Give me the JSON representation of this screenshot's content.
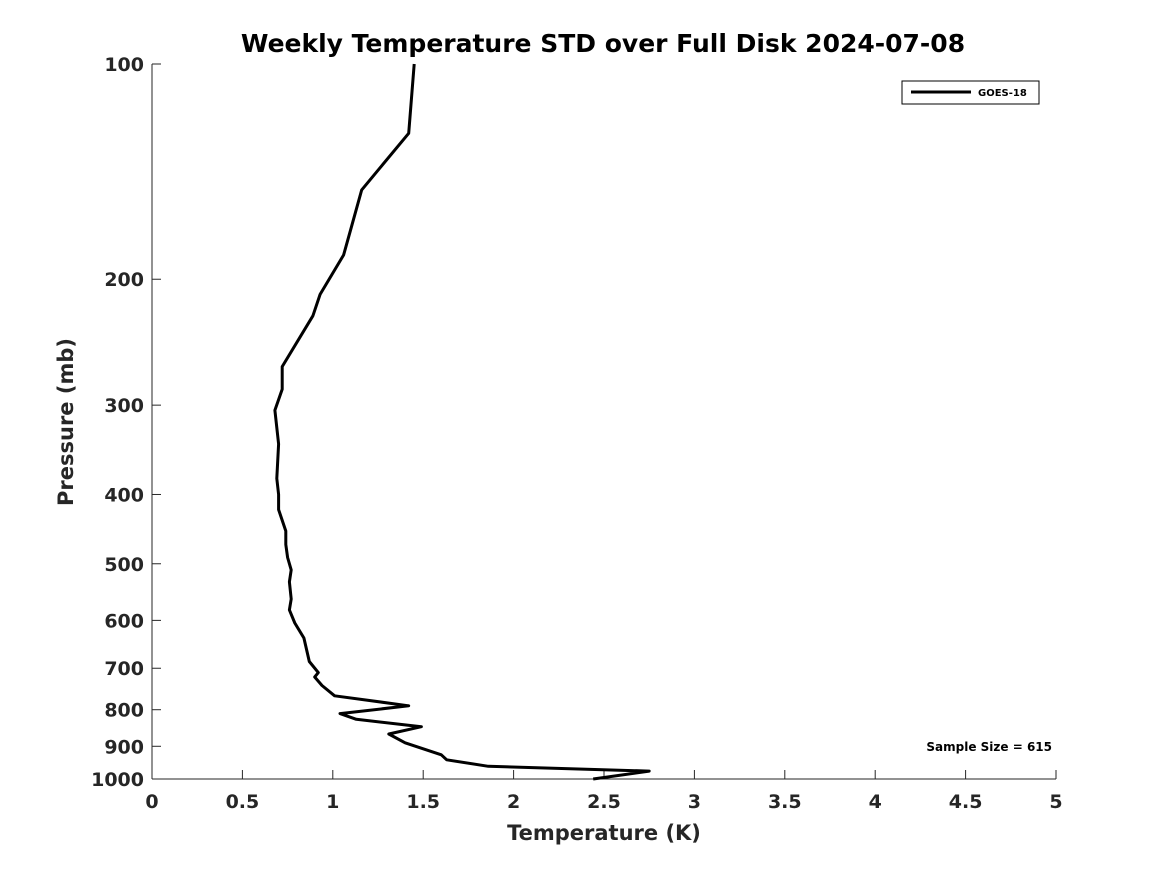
{
  "chart_data": {
    "type": "line",
    "title": "Weekly Temperature STD over Full Disk 2024-07-08",
    "xlabel": "Temperature (K)",
    "ylabel": "Pressure (mb)",
    "xlim": [
      0,
      5
    ],
    "ylim": [
      100,
      1000
    ],
    "yscale": "log",
    "yreversed": true,
    "grid": false,
    "x_ticks": [
      0,
      0.5,
      1,
      1.5,
      2,
      2.5,
      3,
      3.5,
      4,
      4.5,
      5
    ],
    "x_tick_labels": [
      "0",
      "0.5",
      "1",
      "1.5",
      "2",
      "2.5",
      "3",
      "3.5",
      "4",
      "4.5",
      "5"
    ],
    "y_ticks": [
      100,
      200,
      300,
      400,
      500,
      600,
      700,
      800,
      900,
      1000
    ],
    "y_tick_labels": [
      "100",
      "200",
      "300",
      "400",
      "500",
      "600",
      "700",
      "800",
      "900",
      "1000"
    ],
    "legend": {
      "position": "top-right",
      "entries": [
        "GOES-18"
      ]
    },
    "annotation": "Sample Size = 615",
    "series": [
      {
        "name": "GOES-18",
        "color": "#000000",
        "points": [
          [
            1.45,
            100
          ],
          [
            1.42,
            125
          ],
          [
            1.16,
            150
          ],
          [
            1.1,
            170
          ],
          [
            1.06,
            185
          ],
          [
            0.93,
            210
          ],
          [
            0.89,
            225
          ],
          [
            0.72,
            265
          ],
          [
            0.72,
            285
          ],
          [
            0.68,
            305
          ],
          [
            0.7,
            340
          ],
          [
            0.69,
            380
          ],
          [
            0.7,
            400
          ],
          [
            0.7,
            420
          ],
          [
            0.74,
            450
          ],
          [
            0.74,
            470
          ],
          [
            0.75,
            490
          ],
          [
            0.77,
            510
          ],
          [
            0.76,
            530
          ],
          [
            0.77,
            560
          ],
          [
            0.76,
            580
          ],
          [
            0.79,
            605
          ],
          [
            0.84,
            635
          ],
          [
            0.87,
            685
          ],
          [
            0.92,
            710
          ],
          [
            0.9,
            720
          ],
          [
            0.94,
            740
          ],
          [
            1.01,
            765
          ],
          [
            1.42,
            790
          ],
          [
            1.04,
            810
          ],
          [
            1.13,
            825
          ],
          [
            1.49,
            845
          ],
          [
            1.31,
            865
          ],
          [
            1.4,
            890
          ],
          [
            1.6,
            925
          ],
          [
            1.63,
            940
          ],
          [
            1.86,
            960
          ],
          [
            2.75,
            975
          ],
          [
            2.44,
            1000
          ]
        ]
      }
    ]
  }
}
